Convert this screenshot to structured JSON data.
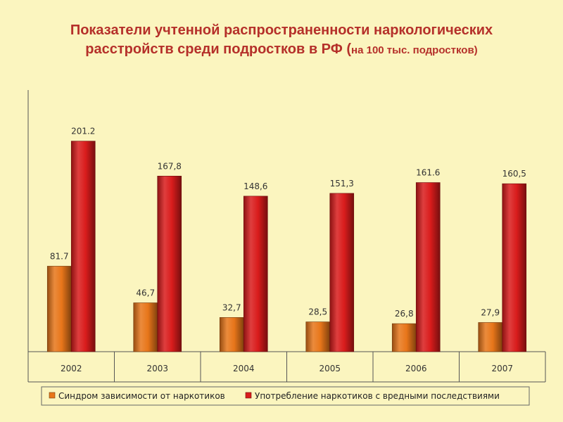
{
  "title": {
    "line1": "Показатели учтенной распространенности наркологических",
    "line2": "расстройств среди подростков в РФ (",
    "line2_small": "на 100 тыс. подростков)"
  },
  "chart_data": {
    "type": "bar",
    "categories": [
      "2002",
      "2003",
      "2004",
      "2005",
      "2006",
      "2007"
    ],
    "series": [
      {
        "name": "Синдром зависимости от наркотиков",
        "color": "#e8761a",
        "values": [
          81.7,
          46.7,
          32.7,
          28.5,
          26.8,
          27.9
        ],
        "labels": [
          "81.7",
          "46,7",
          "32,7",
          "28,5",
          "26,8",
          "27,9"
        ]
      },
      {
        "name": "Употребление наркотиков с вредными последствиями",
        "color": "#d91c1c",
        "values": [
          201.2,
          167.8,
          148.6,
          151.3,
          161.6,
          160.5
        ],
        "labels": [
          "201.2",
          "167,8",
          "148,6",
          "151,3",
          "161.6",
          "160,5"
        ]
      }
    ],
    "ylim": [
      0,
      250
    ],
    "grid": false,
    "legend_position": "bottom"
  }
}
